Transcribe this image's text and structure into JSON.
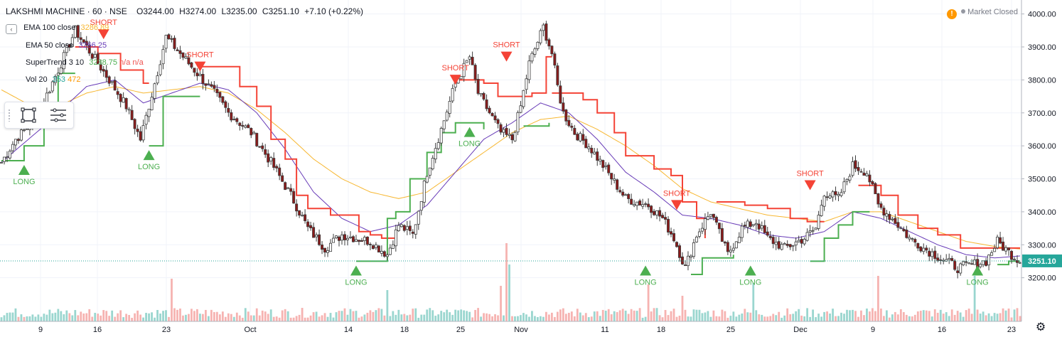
{
  "header": {
    "symbol": "LAKSHMI MACHINE · 60 · NSE",
    "open": "O3244.00",
    "high": "H3274.00",
    "low": "L3235.00",
    "close": "C3251.10",
    "change": "+7.10 (+0.22%)"
  },
  "status": {
    "warning_icon": "!",
    "text": "Market Closed"
  },
  "indicators": [
    {
      "label": "EMA 100 close",
      "value": "3286.89",
      "color": "#f7b731"
    },
    {
      "label": "EMA 50 close",
      "value": "3266.25",
      "color": "#673ab7"
    },
    {
      "label": "SuperTrend 3 10",
      "value": "3238.75",
      "extra1": "n/a",
      "extra2": "n/a",
      "color": "#4caf50"
    },
    {
      "label": "Vol 20",
      "value": "353",
      "extra1": "472",
      "color": "#26a69a",
      "extra_color": "#ff9800"
    }
  ],
  "colors": {
    "up": "#26a69a",
    "down": "#ef5350",
    "candle": "#3d3d3d",
    "candle_down": "#8b1a1a",
    "supertrend_up": "#4caf50",
    "supertrend_down": "#f44336",
    "ema100": "#f7b731",
    "ema50": "#673ab7",
    "vol_up": "#9ad6cf",
    "vol_down": "#f6b3b1",
    "last_price_bg": "#26a69a",
    "grid": "#f0f3fa",
    "axis_text": "#131722"
  },
  "chart_data": {
    "type": "candlestick",
    "title": "LAKSHMI MACHINE · 60 · NSE",
    "ylim": [
      3130,
      4010
    ],
    "y_ticks": [
      3200,
      3300,
      3400,
      3500,
      3600,
      3700,
      3800,
      3900,
      4000
    ],
    "y_tick_labels": [
      "3200.00",
      "3300.00",
      "3400.00",
      "3500.00",
      "3600.00",
      "3700.00",
      "3800.00",
      "3900.00",
      "4000.00"
    ],
    "last_price": 3251.1,
    "last_price_label": "3251.10",
    "x_labels": [
      "9",
      "16",
      "23",
      "Oct",
      "14",
      "18",
      "25",
      "Nov",
      "11",
      "18",
      "25",
      "Dec",
      "9",
      "16",
      "23"
    ],
    "close_path": [
      [
        0,
        3550
      ],
      [
        5,
        3620
      ],
      [
        12,
        3680
      ],
      [
        20,
        3830
      ],
      [
        26,
        3950
      ],
      [
        30,
        3900
      ],
      [
        38,
        3800
      ],
      [
        44,
        3720
      ],
      [
        49,
        3620
      ],
      [
        54,
        3790
      ],
      [
        58,
        3930
      ],
      [
        63,
        3880
      ],
      [
        68,
        3830
      ],
      [
        75,
        3760
      ],
      [
        80,
        3700
      ],
      [
        88,
        3640
      ],
      [
        95,
        3550
      ],
      [
        102,
        3450
      ],
      [
        108,
        3350
      ],
      [
        114,
        3290
      ],
      [
        120,
        3330
      ],
      [
        130,
        3310
      ],
      [
        136,
        3270
      ],
      [
        140,
        3360
      ],
      [
        145,
        3330
      ],
      [
        150,
        3520
      ],
      [
        155,
        3650
      ],
      [
        160,
        3790
      ],
      [
        165,
        3870
      ],
      [
        168,
        3760
      ],
      [
        172,
        3700
      ],
      [
        176,
        3640
      ],
      [
        180,
        3620
      ],
      [
        183,
        3720
      ],
      [
        186,
        3850
      ],
      [
        191,
        3960
      ],
      [
        194,
        3880
      ],
      [
        196,
        3780
      ],
      [
        198,
        3700
      ],
      [
        202,
        3640
      ],
      [
        207,
        3600
      ],
      [
        212,
        3540
      ],
      [
        220,
        3440
      ],
      [
        228,
        3420
      ],
      [
        233,
        3380
      ],
      [
        237,
        3320
      ],
      [
        241,
        3230
      ],
      [
        245,
        3330
      ],
      [
        250,
        3400
      ],
      [
        256,
        3270
      ],
      [
        261,
        3350
      ],
      [
        266,
        3370
      ],
      [
        270,
        3320
      ],
      [
        276,
        3290
      ],
      [
        283,
        3320
      ],
      [
        287,
        3350
      ],
      [
        290,
        3460
      ],
      [
        295,
        3440
      ],
      [
        300,
        3540
      ],
      [
        305,
        3520
      ],
      [
        309,
        3420
      ],
      [
        315,
        3370
      ],
      [
        320,
        3320
      ],
      [
        325,
        3290
      ],
      [
        331,
        3260
      ],
      [
        337,
        3230
      ],
      [
        342,
        3240
      ],
      [
        347,
        3250
      ],
      [
        351,
        3310
      ],
      [
        356,
        3270
      ],
      [
        359,
        3251
      ]
    ],
    "super_trend": [
      {
        "trend": "up",
        "points": [
          [
            0,
            3555
          ],
          [
            8,
            3600
          ],
          [
            15,
            3700
          ],
          [
            20,
            3820
          ],
          [
            26,
            3820
          ]
        ]
      },
      {
        "trend": "down",
        "points": [
          [
            26,
            3900
          ],
          [
            34,
            3880
          ],
          [
            42,
            3830
          ],
          [
            50,
            3790
          ],
          [
            52,
            3790
          ]
        ]
      },
      {
        "trend": "up",
        "points": [
          [
            52,
            3600
          ],
          [
            57,
            3750
          ],
          [
            66,
            3750
          ],
          [
            70,
            3750
          ]
        ]
      },
      {
        "trend": "down",
        "points": [
          [
            70,
            3840
          ],
          [
            80,
            3840
          ],
          [
            84,
            3780
          ],
          [
            90,
            3720
          ],
          [
            95,
            3620
          ],
          [
            100,
            3560
          ],
          [
            104,
            3450
          ],
          [
            108,
            3410
          ],
          [
            116,
            3390
          ],
          [
            122,
            3390
          ],
          [
            126,
            3340
          ],
          [
            130,
            3330
          ],
          [
            134,
            3320
          ],
          [
            139,
            3330
          ]
        ]
      },
      {
        "trend": "up",
        "points": [
          [
            125,
            3250
          ],
          [
            134,
            3250
          ],
          [
            136,
            3380
          ],
          [
            139,
            3400
          ],
          [
            144,
            3500
          ],
          [
            150,
            3580
          ],
          [
            155,
            3640
          ],
          [
            160,
            3670
          ],
          [
            165,
            3670
          ],
          [
            170,
            3650
          ]
        ]
      },
      {
        "trend": "down",
        "points": [
          [
            160,
            3800
          ],
          [
            170,
            3790
          ],
          [
            175,
            3750
          ],
          [
            182,
            3750
          ],
          [
            187,
            3760
          ],
          [
            192,
            3870
          ],
          [
            194,
            3870
          ]
        ]
      },
      {
        "trend": "up",
        "points": [
          [
            184,
            3660
          ],
          [
            190,
            3660
          ],
          [
            193,
            3670
          ]
        ]
      },
      {
        "trend": "down",
        "points": [
          [
            194,
            3760
          ],
          [
            199,
            3760
          ],
          [
            205,
            3740
          ],
          [
            210,
            3700
          ],
          [
            216,
            3640
          ],
          [
            220,
            3570
          ],
          [
            230,
            3530
          ],
          [
            236,
            3510
          ],
          [
            240,
            3430
          ],
          [
            245,
            3380
          ],
          [
            248,
            3320
          ]
        ]
      },
      {
        "trend": "up",
        "points": [
          [
            243,
            3210
          ],
          [
            247,
            3260
          ],
          [
            252,
            3260
          ],
          [
            258,
            3270
          ]
        ]
      },
      {
        "trend": "down",
        "points": [
          [
            252,
            3430
          ],
          [
            262,
            3420
          ],
          [
            270,
            3410
          ],
          [
            278,
            3380
          ],
          [
            284,
            3370
          ],
          [
            290,
            3370
          ]
        ]
      },
      {
        "trend": "up",
        "points": [
          [
            285,
            3250
          ],
          [
            290,
            3320
          ],
          [
            295,
            3360
          ],
          [
            300,
            3400
          ],
          [
            306,
            3400
          ]
        ]
      },
      {
        "trend": "down",
        "points": [
          [
            302,
            3480
          ],
          [
            310,
            3450
          ],
          [
            316,
            3390
          ],
          [
            323,
            3350
          ],
          [
            330,
            3330
          ],
          [
            338,
            3290
          ],
          [
            352,
            3290
          ],
          [
            359,
            3290
          ]
        ]
      },
      {
        "trend": "up",
        "points": [
          [
            351,
            3240
          ],
          [
            355,
            3250
          ],
          [
            359,
            3250
          ]
        ]
      }
    ],
    "ema50_path": [
      [
        0,
        3550
      ],
      [
        15,
        3660
      ],
      [
        30,
        3780
      ],
      [
        40,
        3800
      ],
      [
        50,
        3730
      ],
      [
        60,
        3760
      ],
      [
        70,
        3790
      ],
      [
        80,
        3770
      ],
      [
        90,
        3700
      ],
      [
        100,
        3590
      ],
      [
        110,
        3460
      ],
      [
        120,
        3380
      ],
      [
        130,
        3340
      ],
      [
        140,
        3360
      ],
      [
        150,
        3420
      ],
      [
        160,
        3520
      ],
      [
        170,
        3620
      ],
      [
        180,
        3670
      ],
      [
        190,
        3730
      ],
      [
        200,
        3700
      ],
      [
        210,
        3620
      ],
      [
        220,
        3520
      ],
      [
        230,
        3460
      ],
      [
        240,
        3390
      ],
      [
        250,
        3380
      ],
      [
        260,
        3360
      ],
      [
        270,
        3330
      ],
      [
        280,
        3320
      ],
      [
        290,
        3340
      ],
      [
        300,
        3400
      ],
      [
        310,
        3380
      ],
      [
        320,
        3340
      ],
      [
        330,
        3300
      ],
      [
        340,
        3270
      ],
      [
        350,
        3260
      ],
      [
        359,
        3266
      ]
    ],
    "ema100_path": [
      [
        0,
        3770
      ],
      [
        15,
        3700
      ],
      [
        30,
        3760
      ],
      [
        40,
        3780
      ],
      [
        50,
        3760
      ],
      [
        60,
        3770
      ],
      [
        70,
        3780
      ],
      [
        80,
        3760
      ],
      [
        90,
        3710
      ],
      [
        100,
        3640
      ],
      [
        110,
        3560
      ],
      [
        120,
        3500
      ],
      [
        130,
        3460
      ],
      [
        140,
        3440
      ],
      [
        150,
        3460
      ],
      [
        160,
        3520
      ],
      [
        170,
        3580
      ],
      [
        180,
        3640
      ],
      [
        190,
        3680
      ],
      [
        200,
        3690
      ],
      [
        210,
        3650
      ],
      [
        220,
        3600
      ],
      [
        230,
        3540
      ],
      [
        240,
        3470
      ],
      [
        250,
        3430
      ],
      [
        260,
        3410
      ],
      [
        270,
        3390
      ],
      [
        280,
        3380
      ],
      [
        290,
        3370
      ],
      [
        300,
        3400
      ],
      [
        310,
        3400
      ],
      [
        320,
        3370
      ],
      [
        330,
        3340
      ],
      [
        340,
        3310
      ],
      [
        350,
        3295
      ],
      [
        359,
        3287
      ]
    ],
    "signals": [
      {
        "type": "long",
        "label": "LONG",
        "index": 8,
        "price": 3555
      },
      {
        "type": "short",
        "label": "SHORT",
        "index": 36,
        "price": 3958
      },
      {
        "type": "long",
        "label": "LONG",
        "index": 52,
        "price": 3600
      },
      {
        "type": "short",
        "label": "SHORT",
        "index": 70,
        "price": 3860
      },
      {
        "type": "long",
        "label": "LONG",
        "index": 125,
        "price": 3250
      },
      {
        "type": "short",
        "label": "SHORT",
        "index": 160,
        "price": 3820
      },
      {
        "type": "long",
        "label": "LONG",
        "index": 165,
        "price": 3670
      },
      {
        "type": "short",
        "label": "SHORT",
        "index": 178,
        "price": 3890
      },
      {
        "type": "long",
        "label": "LONG",
        "index": 227,
        "price": 3250
      },
      {
        "type": "short",
        "label": "SHORT",
        "index": 238,
        "price": 3440
      },
      {
        "type": "long",
        "label": "LONG",
        "index": 264,
        "price": 3250
      },
      {
        "type": "short",
        "label": "SHORT",
        "index": 285,
        "price": 3500
      },
      {
        "type": "long",
        "label": "LONG",
        "index": 344,
        "price": 3250
      }
    ],
    "volume_spikes": [
      {
        "index": 60,
        "value": 3.0
      },
      {
        "index": 136,
        "value": 2.2
      },
      {
        "index": 176,
        "value": 2.5
      },
      {
        "index": 178,
        "value": 5.5
      },
      {
        "index": 179,
        "value": 4.0
      },
      {
        "index": 228,
        "value": 2.6
      },
      {
        "index": 240,
        "value": 1.8
      },
      {
        "index": 265,
        "value": 2.7
      },
      {
        "index": 309,
        "value": 3.2
      },
      {
        "index": 343,
        "value": 3.2
      }
    ]
  }
}
